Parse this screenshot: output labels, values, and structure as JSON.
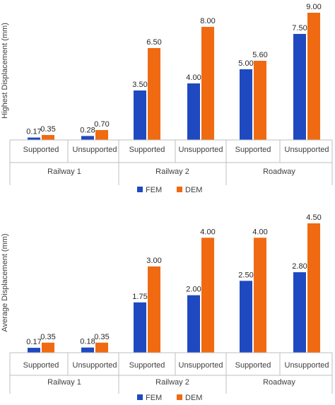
{
  "chart_data": [
    {
      "type": "bar",
      "title": "",
      "ylabel": "Highest Displacement (mm)",
      "groups": [
        "Railway 1",
        "Railway 2",
        "Roadway"
      ],
      "categories": [
        "Supported",
        "Unsupported",
        "Supported",
        "Unsupported",
        "Supported",
        "Unsupported"
      ],
      "series": [
        {
          "name": "FEM",
          "color": "#1f49c1",
          "values": [
            0.17,
            0.28,
            3.5,
            4.0,
            5.0,
            7.5
          ]
        },
        {
          "name": "DEM",
          "color": "#f06a12",
          "values": [
            0.35,
            0.7,
            6.5,
            8.0,
            5.6,
            9.0
          ]
        }
      ],
      "ylim": [
        0,
        9
      ],
      "legend": "bottom",
      "grid": false
    },
    {
      "type": "bar",
      "title": "",
      "ylabel": "Average Displacement (mm)",
      "groups": [
        "Railway 1",
        "Railway 2",
        "Roadway"
      ],
      "categories": [
        "Supported",
        "Unsupported",
        "Supported",
        "Unsupported",
        "Supported",
        "Unsupported"
      ],
      "series": [
        {
          "name": "FEM",
          "color": "#1f49c1",
          "values": [
            0.17,
            0.18,
            1.75,
            2.0,
            2.5,
            2.8
          ]
        },
        {
          "name": "DEM",
          "color": "#f06a12",
          "values": [
            0.35,
            0.35,
            3.0,
            4.0,
            4.0,
            4.5
          ]
        }
      ],
      "ylim": [
        0,
        4.5
      ],
      "legend": "bottom",
      "grid": false
    }
  ]
}
